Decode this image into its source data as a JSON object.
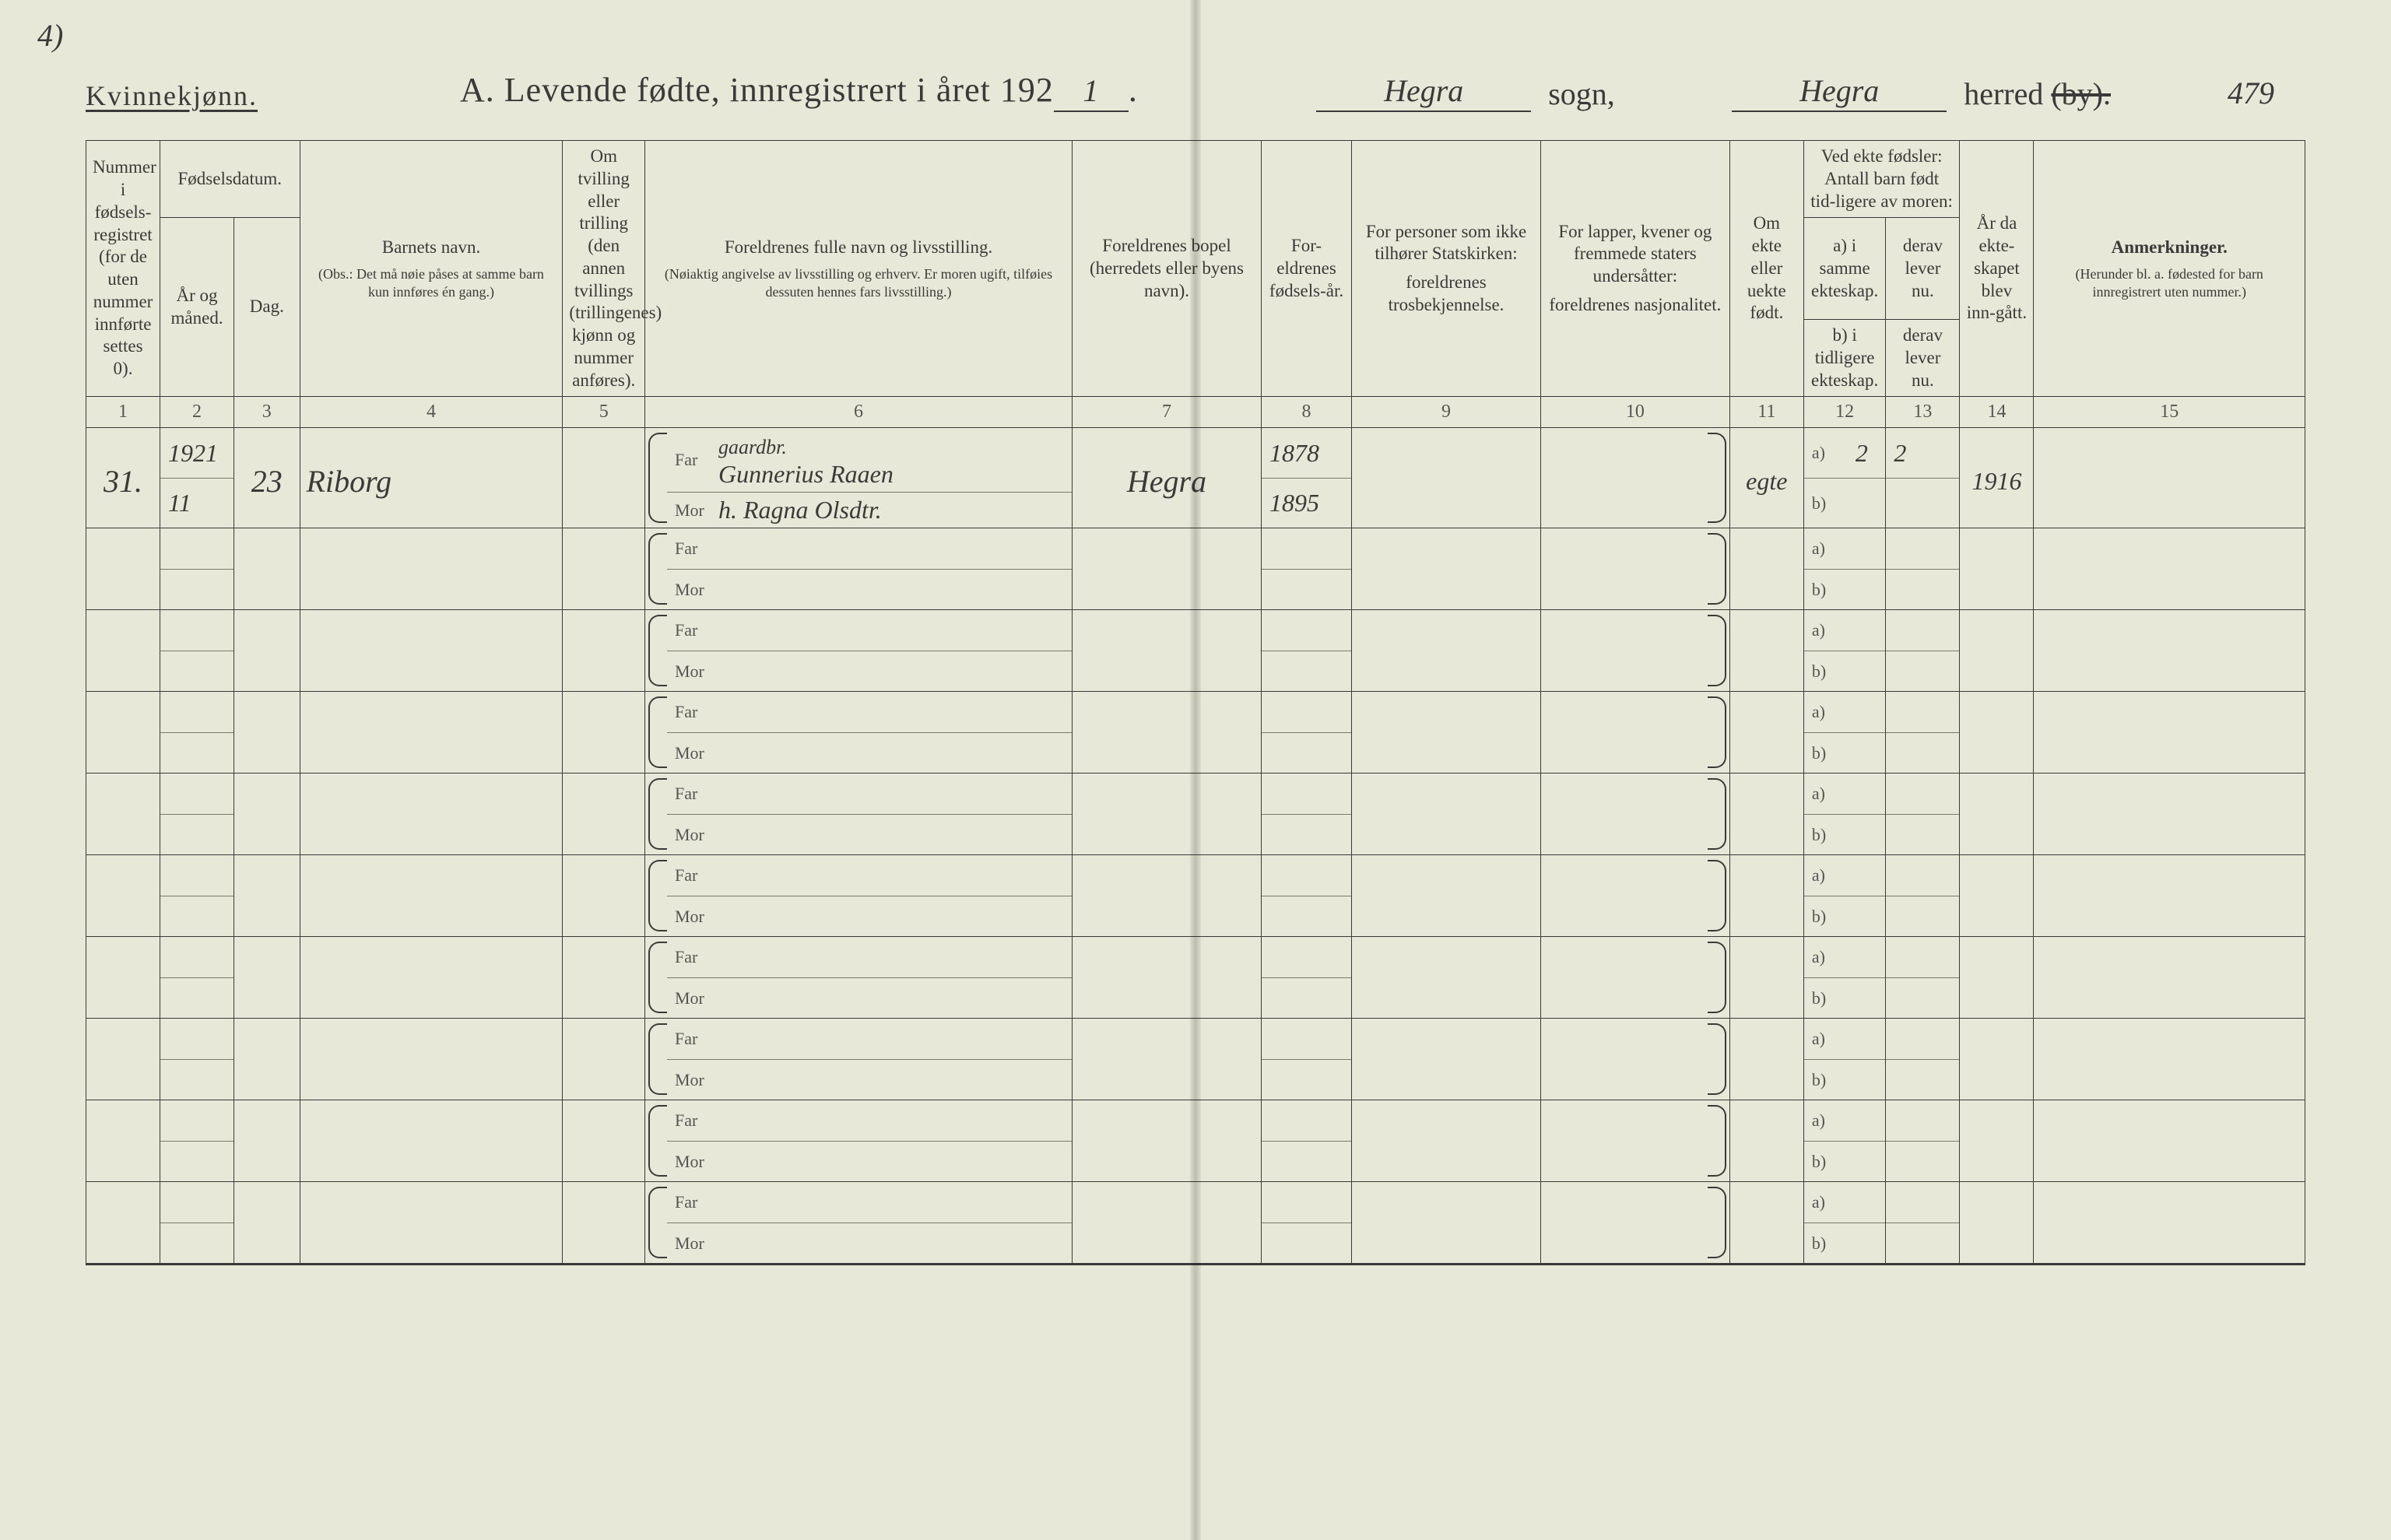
{
  "corner_note": "4)",
  "page_number_hand": "479",
  "header": {
    "gender": "Kvinnekjønn.",
    "title_prefix": "A.   Levende  fødte,  innregistrert  i  året  192",
    "year_suffix": "1",
    "sogn_label": "sogn,",
    "sogn_value": "Hegra",
    "herred_label_a": "herred",
    "herred_label_b": "(by).",
    "herred_value": "Hegra"
  },
  "columns": {
    "c1": "Nummer i fødsels-registret (for de uten nummer innførte settes 0).",
    "c23_group": "Fødselsdatum.",
    "c2": "År og måned.",
    "c3": "Dag.",
    "c4_a": "Barnets navn.",
    "c4_b": "(Obs.:  Det må nøie påses at samme barn kun innføres én gang.)",
    "c5": "Om tvilling eller trilling (den annen tvillings (trillingenes) kjønn og nummer anføres).",
    "c6_a": "Foreldrenes fulle navn og livsstilling.",
    "c6_b": "(Nøiaktig angivelse av livsstilling og erhverv. Er moren ugift, tilføies dessuten hennes fars livsstilling.)",
    "c7": "Foreldrenes bopel (herredets eller byens navn).",
    "c8": "For-eldrenes fødsels-år.",
    "c9_a": "For personer som ikke tilhører Statskirken:",
    "c9_b": "foreldrenes trosbekjennelse.",
    "c10_a": "For lapper, kvener og fremmede staters undersåtter:",
    "c10_b": "foreldrenes nasjonalitet.",
    "c11": "Om ekte eller uekte født.",
    "c12_top": "Ved ekte fødsler: Antall barn født tid-ligere av moren:",
    "c12a": "a) i samme ekteskap.",
    "c12b": "derav lever nu.",
    "c12c": "b) i tidligere ekteskap.",
    "c12d": "derav lever nu.",
    "c14": "År da ekte-skapet blev inn-gått.",
    "c15_a": "Anmerkninger.",
    "c15_b": "(Herunder bl. a. fødested for barn innregistrert uten nummer.)"
  },
  "colnums": [
    "1",
    "2",
    "3",
    "4",
    "5",
    "6",
    "7",
    "8",
    "9",
    "10",
    "11",
    "12",
    "13",
    "14",
    "15"
  ],
  "row_labels": {
    "far": "Far",
    "mor": "Mor",
    "a": "a)",
    "b": "b)"
  },
  "entries": [
    {
      "num": "31.",
      "year_month_top": "1921",
      "year_month_bot": "11",
      "day": "23",
      "child_name": "Riborg",
      "twin": "",
      "far_occ": "gaardbr.",
      "far_name": "Gunnerius Raaen",
      "mor_name": "h. Ragna Olsdtr.",
      "residence": "Hegra",
      "far_by": "1878",
      "mor_by": "1895",
      "religion": "",
      "nationality": "",
      "legit": "egte",
      "c12_a_same": "2",
      "c12_a_live": "2",
      "c12_b_prev": "",
      "c12_b_live": "",
      "marriage_year": "1916",
      "remarks": ""
    }
  ],
  "blank_rows": 9,
  "colors": {
    "paper": "#e8e8d8",
    "ink": "#3a3a3a",
    "faint": "#7a7a6a"
  }
}
